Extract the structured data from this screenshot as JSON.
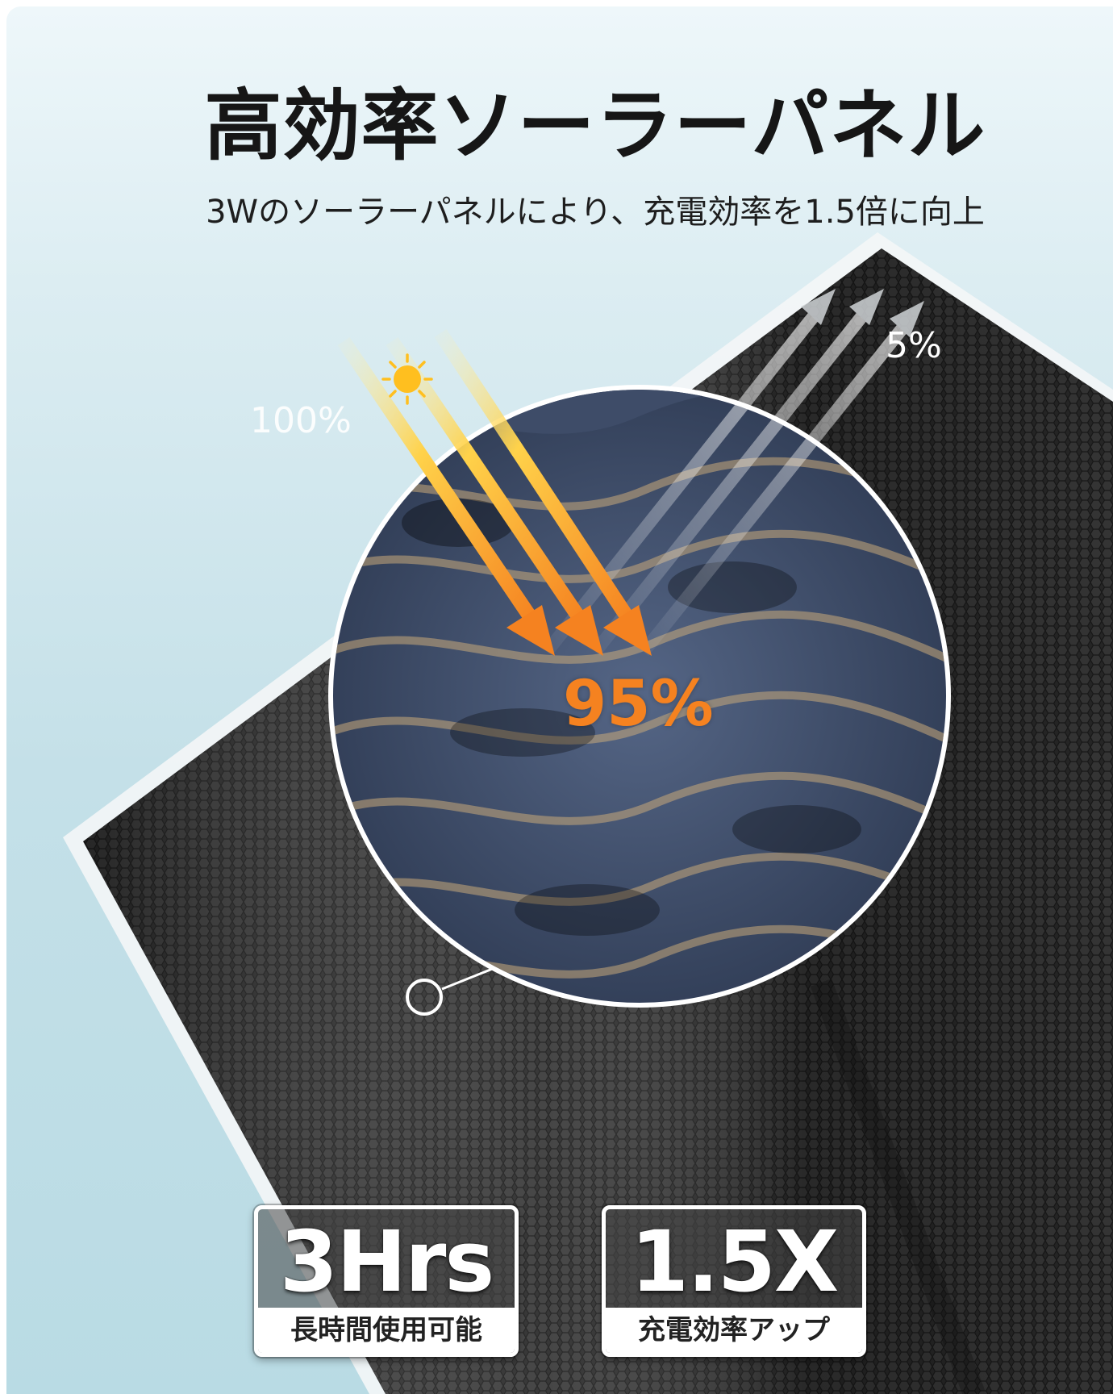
{
  "header": {
    "title": "高効率ソーラーパネル",
    "subtitle": "3Wのソーラーパネルにより、充電効率を1.5倍に向上"
  },
  "diagram": {
    "incoming_label": "100%",
    "reflected_label": "5%",
    "absorbed_label": "95%",
    "colors": {
      "ray_warm": "#ffc630",
      "ray_orange": "#f58220",
      "panel": "#2b2b2b",
      "cell": "#4a5a78"
    },
    "icons": [
      "sun-icon",
      "zoom-pointer-icon"
    ]
  },
  "badges": [
    {
      "value": "3Hrs",
      "label": "長時間使用可能"
    },
    {
      "value": "1.5X",
      "label": "充電効率アップ"
    }
  ]
}
